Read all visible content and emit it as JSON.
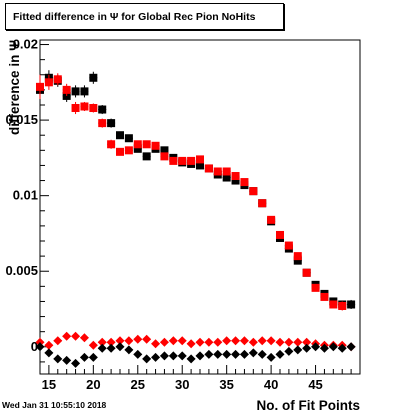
{
  "header": {
    "title": "Fitted difference in  Ψ  for Global Rec Pion NoHits",
    "timestamp": "Wed Jan 31 10:55:10 2018"
  },
  "chart_data": {
    "type": "scatter",
    "title": "Fitted difference in  Ψ  for Global Rec Pion NoHits",
    "xlabel": "No. of Fit Points",
    "ylabel": "difference in  Ψ",
    "xlim": [
      14,
      50
    ],
    "ylim": [
      -0.0018,
      0.0203
    ],
    "xticks": [
      15,
      20,
      25,
      30,
      35,
      40,
      45
    ],
    "xtick_labels": [
      "15",
      "20",
      "25",
      "30",
      "35",
      "40",
      "45"
    ],
    "yticks": [
      0,
      0.005,
      0.01,
      0.015,
      0.02
    ],
    "ytick_labels": [
      "0",
      "0.005",
      "0.01",
      "0.015",
      "0.02"
    ],
    "grid": false,
    "series": [
      {
        "marker": "square",
        "color": "#000000",
        "x": [
          14,
          15,
          16,
          17,
          18,
          19,
          20,
          21,
          22,
          23,
          24,
          25,
          26,
          27,
          28,
          29,
          30,
          31,
          32,
          33,
          34,
          35,
          36,
          37,
          38,
          39,
          40,
          41,
          42,
          43,
          44,
          45,
          46,
          47,
          48,
          49
        ],
        "y": [
          0.017,
          0.0178,
          0.0176,
          0.0166,
          0.0169,
          0.0169,
          0.0178,
          0.0157,
          0.0148,
          0.014,
          0.0138,
          0.0131,
          0.0126,
          0.0131,
          0.013,
          0.0125,
          0.0122,
          0.0121,
          0.012,
          0.0118,
          0.0114,
          0.0112,
          0.011,
          0.0107,
          0.0103,
          0.0095,
          0.0083,
          0.0072,
          0.0065,
          0.0057,
          0.0049,
          0.0041,
          0.0035,
          0.003,
          0.0028,
          0.0028
        ],
        "yerr": [
          0.0008,
          0.0005,
          0.0004,
          0.0004,
          0.0004,
          0.0004,
          0.0004,
          0.0003,
          0.0003,
          0.0002,
          0.0002,
          0.0002,
          0.0002,
          0.0002,
          0.0002,
          0.0002,
          0.0002,
          0.0002,
          0.0002,
          0.0002,
          0.0002,
          0.0002,
          0.0002,
          0.0002,
          0.0002,
          0.0002,
          0.0002,
          0.0002,
          0.0002,
          0.0002,
          0.0002,
          0.0002,
          0.0002,
          0.0002,
          0.0002,
          0.0003
        ]
      },
      {
        "marker": "square",
        "color": "#ff0000",
        "x": [
          14,
          15,
          16,
          17,
          18,
          19,
          20,
          21,
          22,
          23,
          24,
          25,
          26,
          27,
          28,
          29,
          30,
          31,
          32,
          33,
          34,
          35,
          36,
          37,
          38,
          39,
          40,
          41,
          42,
          43,
          44,
          45,
          46,
          47,
          48
        ],
        "y": [
          0.0172,
          0.0175,
          0.0177,
          0.017,
          0.0158,
          0.0159,
          0.0158,
          0.0148,
          0.0134,
          0.0129,
          0.013,
          0.0134,
          0.0134,
          0.0133,
          0.0126,
          0.0123,
          0.0123,
          0.0123,
          0.0124,
          0.0118,
          0.0116,
          0.0116,
          0.0113,
          0.0109,
          0.0103,
          0.0095,
          0.0084,
          0.0074,
          0.0067,
          0.006,
          0.0049,
          0.0039,
          0.0033,
          0.0028,
          0.0027
        ],
        "yerr": [
          0.0008,
          0.0005,
          0.0004,
          0.0004,
          0.0004,
          0.0003,
          0.0003,
          0.0003,
          0.0003,
          0.0002,
          0.0002,
          0.0002,
          0.0002,
          0.0002,
          0.0002,
          0.0002,
          0.0002,
          0.0002,
          0.0002,
          0.0002,
          0.0002,
          0.0002,
          0.0002,
          0.0002,
          0.0002,
          0.0002,
          0.0002,
          0.0002,
          0.0002,
          0.0002,
          0.0002,
          0.0002,
          0.0002,
          0.0002,
          0.0003
        ]
      },
      {
        "marker": "diamond",
        "color": "#ff0000",
        "x": [
          14,
          15,
          16,
          17,
          18,
          19,
          20,
          21,
          22,
          23,
          24,
          25,
          26,
          27,
          28,
          29,
          30,
          31,
          32,
          33,
          34,
          35,
          36,
          37,
          38,
          39,
          40,
          41,
          42,
          43,
          44,
          45,
          46,
          47,
          48,
          49
        ],
        "y": [
          0.0003,
          0.0001,
          0.0004,
          0.0007,
          0.0007,
          0.0006,
          0.0001,
          0.0003,
          0.0003,
          0.0004,
          0.0004,
          0.0005,
          0.0005,
          0.0002,
          0.0003,
          0.0004,
          0.0004,
          0.0002,
          0.0003,
          0.0003,
          0.0003,
          0.0004,
          0.0004,
          0.0004,
          0.0003,
          0.0004,
          0.0004,
          0.0003,
          0.0003,
          0.0003,
          0.0003,
          0.0002,
          0.0001,
          0.0001,
          0.0001,
          0.0
        ],
        "yerr": [
          0.0003,
          0.0002,
          0.0002,
          0.0002,
          0.0002,
          0.0002,
          0.0002,
          0.0002,
          0.0002,
          0.0001,
          0.0001,
          0.0001,
          0.0001,
          0.0001,
          0.0001,
          0.0001,
          0.0001,
          0.0001,
          0.0001,
          0.0001,
          0.0001,
          0.0001,
          0.0001,
          0.0001,
          0.0001,
          0.0001,
          0.0001,
          0.0001,
          0.0001,
          0.0001,
          0.0001,
          0.0001,
          0.0001,
          0.0001,
          0.0001,
          0.0002
        ]
      },
      {
        "marker": "diamond",
        "color": "#000000",
        "x": [
          14,
          15,
          16,
          17,
          18,
          19,
          20,
          21,
          22,
          23,
          24,
          25,
          26,
          27,
          28,
          29,
          30,
          31,
          32,
          33,
          34,
          35,
          36,
          37,
          38,
          39,
          40,
          41,
          42,
          43,
          44,
          45,
          46,
          47,
          48,
          49
        ],
        "y": [
          0.0,
          -0.0004,
          -0.0008,
          -0.0009,
          -0.0011,
          -0.0007,
          -0.0007,
          -0.0001,
          -0.0001,
          0.0,
          -0.0002,
          -0.0005,
          -0.0008,
          -0.0007,
          -0.0006,
          -0.0006,
          -0.0006,
          -0.0008,
          -0.0006,
          -0.0005,
          -0.0005,
          -0.0005,
          -0.0005,
          -0.0005,
          -0.0004,
          -0.0005,
          -0.0007,
          -0.0005,
          -0.0003,
          -0.0002,
          -0.0001,
          0.0,
          -0.0001,
          0.0,
          -0.0001,
          0.0
        ],
        "yerr": [
          0.0003,
          0.0002,
          0.0002,
          0.0002,
          0.0002,
          0.0002,
          0.0002,
          0.0002,
          0.0002,
          0.0001,
          0.0001,
          0.0001,
          0.0001,
          0.0001,
          0.0001,
          0.0001,
          0.0001,
          0.0001,
          0.0001,
          0.0001,
          0.0001,
          0.0001,
          0.0001,
          0.0001,
          0.0001,
          0.0001,
          0.0001,
          0.0001,
          0.0001,
          0.0001,
          0.0001,
          0.0001,
          0.0001,
          0.0001,
          0.0001,
          0.0002
        ]
      }
    ]
  }
}
